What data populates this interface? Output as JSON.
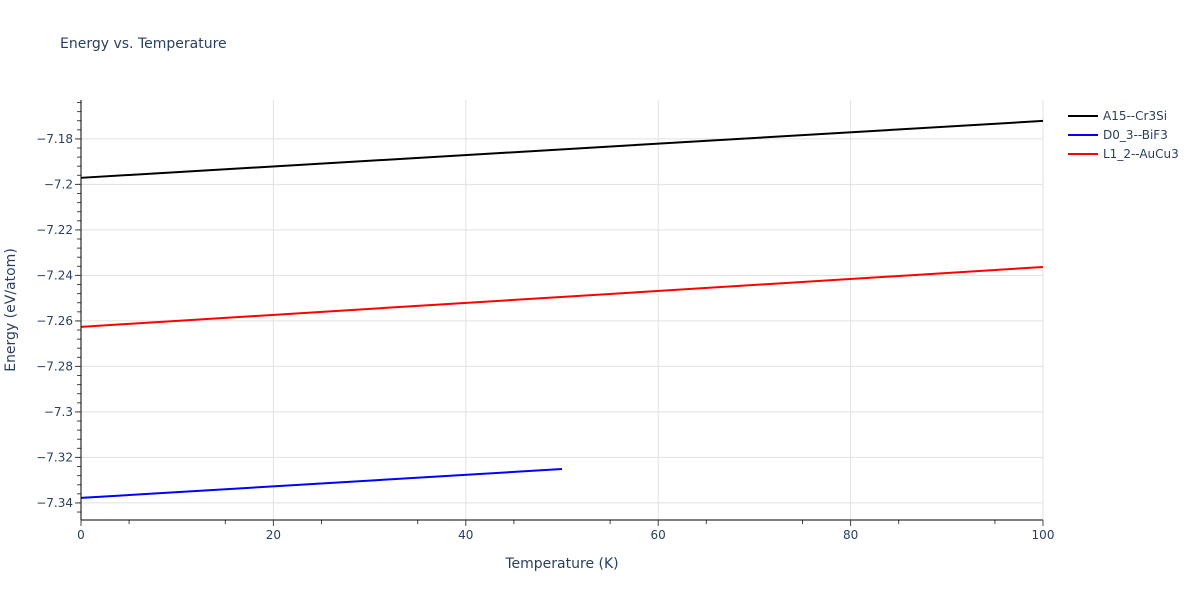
{
  "chart_data": {
    "type": "line",
    "title": "Energy vs. Temperature",
    "xlabel": "Temperature (K)",
    "ylabel": "Energy (eV/atom)",
    "xlim": [
      0,
      100
    ],
    "ylim": [
      -7.3475,
      -7.1629
    ],
    "x_ticks": [
      0,
      20,
      40,
      60,
      80,
      100
    ],
    "x_tick_labels": [
      "0",
      "20",
      "40",
      "60",
      "80",
      "100"
    ],
    "y_ticks": [
      -7.18,
      -7.2,
      -7.22,
      -7.24,
      -7.26,
      -7.28,
      -7.3,
      -7.32,
      -7.34
    ],
    "y_tick_labels": [
      "−7.18",
      "−7.2",
      "−7.22",
      "−7.24",
      "−7.26",
      "−7.28",
      "−7.3",
      "−7.32",
      "−7.34"
    ],
    "grid": true,
    "legend_position": "right",
    "series": [
      {
        "name": "A15--Cr3Si",
        "color": "#000000",
        "x": [
          0,
          100
        ],
        "y": [
          -7.1971,
          -7.1721
        ]
      },
      {
        "name": "D0_3--BiF3",
        "color": "#0000ff",
        "x": [
          0,
          50
        ],
        "y": [
          -7.3378,
          -7.3251
        ]
      },
      {
        "name": "L1_2--AuCu3",
        "color": "#ff0000",
        "x": [
          0,
          100
        ],
        "y": [
          -7.2626,
          -7.2363
        ]
      }
    ]
  }
}
